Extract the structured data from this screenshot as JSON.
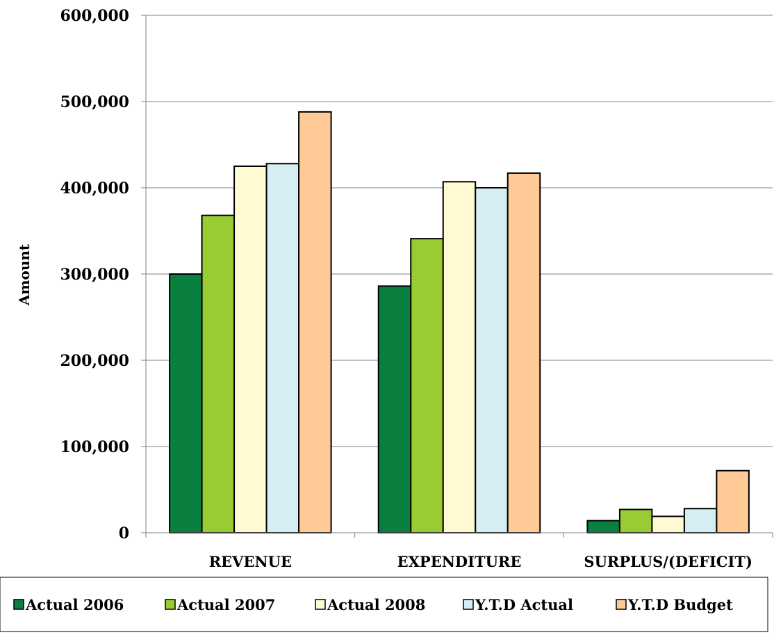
{
  "chart_data": {
    "type": "bar",
    "title": "",
    "xlabel": "",
    "ylabel": "Amount",
    "ylim": [
      0,
      600000
    ],
    "yticks": [
      0,
      100000,
      200000,
      300000,
      400000,
      500000,
      600000
    ],
    "ytick_labels": [
      "0",
      "100,000",
      "200,000",
      "300,000",
      "400,000",
      "500,000",
      "600,000"
    ],
    "categories": [
      "REVENUE",
      "EXPENDITURE",
      "SURPLUS/(DEFICIT)"
    ],
    "grid": true,
    "legend_position": "bottom",
    "series": [
      {
        "name": "Actual 2006",
        "color": "#0a8040",
        "values": [
          300000,
          286000,
          14000
        ]
      },
      {
        "name": "Actual 2007",
        "color": "#99cc33",
        "values": [
          368000,
          341000,
          27000
        ]
      },
      {
        "name": "Actual 2008",
        "color": "#fffad2",
        "values": [
          425000,
          407000,
          19000
        ]
      },
      {
        "name": "Y.T.D Actual",
        "color": "#d4eef4",
        "values": [
          428000,
          400000,
          28000
        ]
      },
      {
        "name": "Y.T.D Budget",
        "color": "#ffca96",
        "values": [
          488000,
          417000,
          72000
        ]
      }
    ]
  }
}
